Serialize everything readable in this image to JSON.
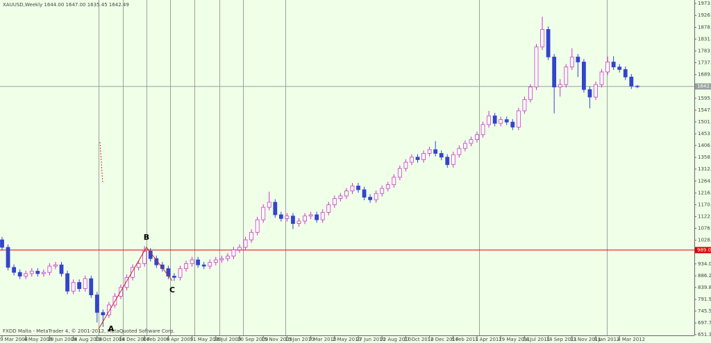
{
  "chart_data": {
    "type": "candlestick",
    "title": "XAUUSD,Weekly  1644.00 1647.00 1635.45 1642.49",
    "footer": "FXDD Malta - MetaTrader 4, © 2001-2012, MetaQuoted Software Corp.",
    "bull_color": "#cc33cc",
    "bear_color": "#3344cc",
    "categories": [
      "9 Mar 2008",
      null,
      null,
      null,
      "4 May 2008",
      null,
      null,
      null,
      "29 Jun 2008",
      null,
      null,
      null,
      "24 Aug 2008",
      null,
      null,
      null,
      "19 Oct 2008",
      null,
      null,
      null,
      "14 Dec 2008",
      null,
      null,
      null,
      "8 Feb 2009",
      null,
      null,
      null,
      "6 Apr 2009",
      null,
      null,
      null,
      "31 May 2009",
      null,
      null,
      null,
      "26 Jul 2009",
      null,
      null,
      null,
      "20 Sep 2009",
      null,
      null,
      null,
      "15 Nov 2009",
      null,
      null,
      null,
      "10 Jan 2010",
      null,
      null,
      null,
      "7 Mar 2010",
      null,
      null,
      null,
      "2 May 2010",
      null,
      null,
      null,
      "27 Jun 2010",
      null,
      null,
      null,
      "22 Aug 2010",
      null,
      null,
      null,
      "17 Oct 2010",
      null,
      null,
      null,
      "12 Dec 2010",
      null,
      null,
      null,
      "6 Feb 2011",
      null,
      null,
      null,
      "3 Apr 2011",
      null,
      null,
      null,
      "29 May 2011",
      null,
      null,
      null,
      "24 Jul 2011",
      null,
      null,
      null,
      "18 Sep 2011",
      null,
      null,
      null,
      "13 Nov 2011",
      null,
      null,
      null,
      "8 Jan 2012",
      null,
      null,
      null,
      "4 Mar 2012",
      null,
      null,
      null
    ],
    "open": [
      1030,
      1000,
      920,
      900,
      885,
      895,
      905,
      895,
      900,
      925,
      930,
      895,
      825,
      860,
      835,
      875,
      810,
      740,
      730,
      770,
      805,
      840,
      880,
      920,
      935,
      985,
      955,
      930,
      915,
      885,
      880,
      915,
      935,
      950,
      930,
      925,
      940,
      950,
      955,
      965,
      990,
      1000,
      1030,
      1060,
      1110,
      1160,
      1180,
      1130,
      1115,
      1125,
      1095,
      1105,
      1125,
      1130,
      1110,
      1140,
      1170,
      1195,
      1205,
      1225,
      1245,
      1230,
      1200,
      1190,
      1215,
      1235,
      1250,
      1280,
      1315,
      1340,
      1360,
      1350,
      1375,
      1390,
      1375,
      1360,
      1330,
      1370,
      1395,
      1415,
      1430,
      1450,
      1490,
      1525,
      1495,
      1510,
      1500,
      1480,
      1545,
      1590,
      1640,
      1800,
      1870,
      1760,
      1640,
      1650,
      1720,
      1760,
      1740,
      1630,
      1600,
      1650,
      1700,
      1740,
      1720,
      1710,
      1680,
      1644
    ],
    "high": [
      1042,
      1012,
      932,
      912,
      907,
      917,
      917,
      912,
      937,
      942,
      942,
      907,
      872,
      872,
      887,
      887,
      822,
      752,
      782,
      817,
      852,
      892,
      932,
      947,
      1005,
      997,
      967,
      942,
      927,
      897,
      927,
      947,
      962,
      962,
      942,
      952,
      962,
      967,
      977,
      1002,
      1012,
      1042,
      1072,
      1122,
      1172,
      1222,
      1192,
      1142,
      1137,
      1137,
      1117,
      1137,
      1142,
      1142,
      1152,
      1182,
      1207,
      1217,
      1237,
      1257,
      1257,
      1242,
      1212,
      1227,
      1247,
      1262,
      1292,
      1327,
      1352,
      1372,
      1372,
      1387,
      1402,
      1424,
      1387,
      1372,
      1382,
      1407,
      1427,
      1442,
      1462,
      1502,
      1545,
      1537,
      1522,
      1522,
      1512,
      1557,
      1602,
      1652,
      1812,
      1921,
      1882,
      1772,
      1672,
      1732,
      1795,
      1772,
      1752,
      1642,
      1662,
      1712,
      1762,
      1763,
      1732,
      1722,
      1692,
      1647
    ],
    "low": [
      988,
      908,
      888,
      873,
      873,
      883,
      883,
      883,
      888,
      913,
      883,
      813,
      813,
      823,
      823,
      798,
      700,
      682,
      718,
      758,
      793,
      828,
      868,
      908,
      923,
      943,
      918,
      903,
      873,
      866,
      868,
      903,
      923,
      918,
      913,
      913,
      928,
      938,
      943,
      953,
      978,
      988,
      1018,
      1048,
      1098,
      1148,
      1118,
      1103,
      1103,
      1073,
      1083,
      1093,
      1113,
      1098,
      1098,
      1128,
      1158,
      1183,
      1193,
      1213,
      1218,
      1188,
      1178,
      1178,
      1203,
      1223,
      1238,
      1268,
      1303,
      1328,
      1338,
      1338,
      1363,
      1363,
      1348,
      1318,
      1318,
      1358,
      1383,
      1403,
      1418,
      1438,
      1478,
      1483,
      1483,
      1488,
      1468,
      1468,
      1533,
      1578,
      1628,
      1788,
      1748,
      1535,
      1602,
      1638,
      1708,
      1680,
      1618,
      1555,
      1588,
      1638,
      1688,
      1708,
      1698,
      1668,
      1632,
      1635.45
    ],
    "close": [
      1000,
      920,
      900,
      885,
      895,
      905,
      895,
      900,
      925,
      930,
      895,
      825,
      860,
      835,
      875,
      810,
      740,
      730,
      770,
      805,
      840,
      880,
      920,
      935,
      985,
      955,
      930,
      915,
      885,
      880,
      915,
      935,
      950,
      930,
      925,
      940,
      950,
      955,
      965,
      990,
      1000,
      1030,
      1060,
      1110,
      1160,
      1180,
      1130,
      1115,
      1125,
      1095,
      1105,
      1125,
      1130,
      1110,
      1140,
      1170,
      1195,
      1205,
      1225,
      1245,
      1230,
      1200,
      1190,
      1215,
      1235,
      1250,
      1280,
      1315,
      1340,
      1360,
      1350,
      1375,
      1390,
      1375,
      1360,
      1330,
      1370,
      1395,
      1415,
      1430,
      1450,
      1490,
      1525,
      1495,
      1510,
      1500,
      1480,
      1545,
      1590,
      1640,
      1800,
      1870,
      1760,
      1640,
      1650,
      1720,
      1760,
      1740,
      1630,
      1600,
      1650,
      1700,
      1740,
      1720,
      1710,
      1680,
      1644,
      1642.49
    ],
    "ylim": [
      648.5,
      1987.5
    ],
    "yticks": [
      {
        "value": 1973.7,
        "label": "1973.70"
      },
      {
        "value": 1926.05,
        "label": "1926.05"
      },
      {
        "value": 1878,
        "label": "1878.00"
      },
      {
        "value": 1831.6,
        "label": "1831.60"
      },
      {
        "value": 1783.7,
        "label": "1783.70"
      },
      {
        "value": 1737.3,
        "label": "1737.30"
      },
      {
        "value": 1689.5,
        "label": "1689.50"
      },
      {
        "value": 1595.25,
        "label": "1595.25"
      },
      {
        "value": 1547.4,
        "label": "1547.40"
      },
      {
        "value": 1501,
        "label": "1501.00"
      },
      {
        "value": 1453.15,
        "label": "1453.15"
      },
      {
        "value": 1406.75,
        "label": "1406.75"
      },
      {
        "value": 1358.9,
        "label": "1358.90"
      },
      {
        "value": 1312.5,
        "label": "1312.50"
      },
      {
        "value": 1264.65,
        "label": "1264.65"
      },
      {
        "value": 1216.8,
        "label": "1216.80"
      },
      {
        "value": 1170.4,
        "label": "1170.40"
      },
      {
        "value": 1122.55,
        "label": "1122.55"
      },
      {
        "value": 1076.15,
        "label": "1076.15"
      },
      {
        "value": 1028.3,
        "label": "1028.30"
      },
      {
        "value": 934.05,
        "label": "934.05"
      },
      {
        "value": 886.2,
        "label": "886.20"
      },
      {
        "value": 839.8,
        "label": "839.80"
      },
      {
        "value": 791.95,
        "label": "791.95"
      },
      {
        "value": 745.55,
        "label": "745.55"
      },
      {
        "value": 697.7,
        "label": "697.70"
      },
      {
        "value": 651.3,
        "label": "651.30"
      }
    ],
    "price_line": {
      "value": 1642.4,
      "label": "1642.40",
      "color": "#9aa0a0"
    },
    "level_line": {
      "value": 989,
      "label": "989.00",
      "color": "#dd0000"
    },
    "pattern": [
      {
        "label": "A",
        "value": 674
      },
      {
        "label": "B",
        "value": 1000
      },
      {
        "label": "C",
        "value": 867
      }
    ]
  }
}
